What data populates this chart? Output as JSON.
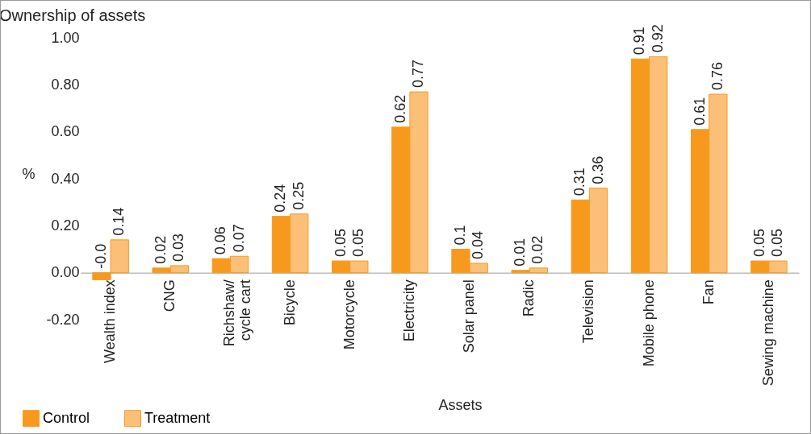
{
  "chart_data": {
    "type": "bar",
    "title": "Ownership of assets",
    "xlabel": "Assets",
    "ylabel": "%",
    "categories": [
      "Wealth index",
      "CNG",
      "Richshaw/ cycle cart",
      "Bicycle",
      "Motorcycle",
      "Electricity",
      "Solar panel",
      "Radic",
      "Television",
      "Mobile phone",
      "Fan",
      "Sewing machine"
    ],
    "series": [
      {
        "name": "Control",
        "color": "#f7991c",
        "values": [
          -0.03,
          0.02,
          0.06,
          0.24,
          0.05,
          0.62,
          0.1,
          0.01,
          0.31,
          0.91,
          0.61,
          0.05
        ],
        "value_labels": [
          "-0.0",
          "0.02",
          "0.06",
          "0.24",
          "0.05",
          "0.62",
          "0.1",
          "0.01",
          "0.31",
          "0.91",
          "0.61",
          "0.05"
        ]
      },
      {
        "name": "Treatment",
        "color": "#fbbf77",
        "values": [
          0.14,
          0.03,
          0.07,
          0.25,
          0.05,
          0.77,
          0.04,
          0.02,
          0.36,
          0.92,
          0.76,
          0.05
        ],
        "value_labels": [
          "0.14",
          "0.03",
          "0.07",
          "0.25",
          "0.05",
          "0.77",
          "0.04",
          "0.02",
          "0.36",
          "0.92",
          "0.76",
          "0.05"
        ]
      }
    ],
    "ylim": [
      -0.2,
      1.0
    ],
    "yticks": [
      {
        "value": -0.2,
        "label": "-0.20"
      },
      {
        "value": 0,
        "label": "0.00"
      },
      {
        "value": 0.2,
        "label": "0.20"
      },
      {
        "value": 0.4,
        "label": "0.40"
      },
      {
        "value": 0.6,
        "label": "0.60"
      },
      {
        "value": 0.8,
        "label": "0.80"
      },
      {
        "value": 1.0,
        "label": "1.00"
      }
    ],
    "grid": false,
    "legend": "bottom left"
  }
}
